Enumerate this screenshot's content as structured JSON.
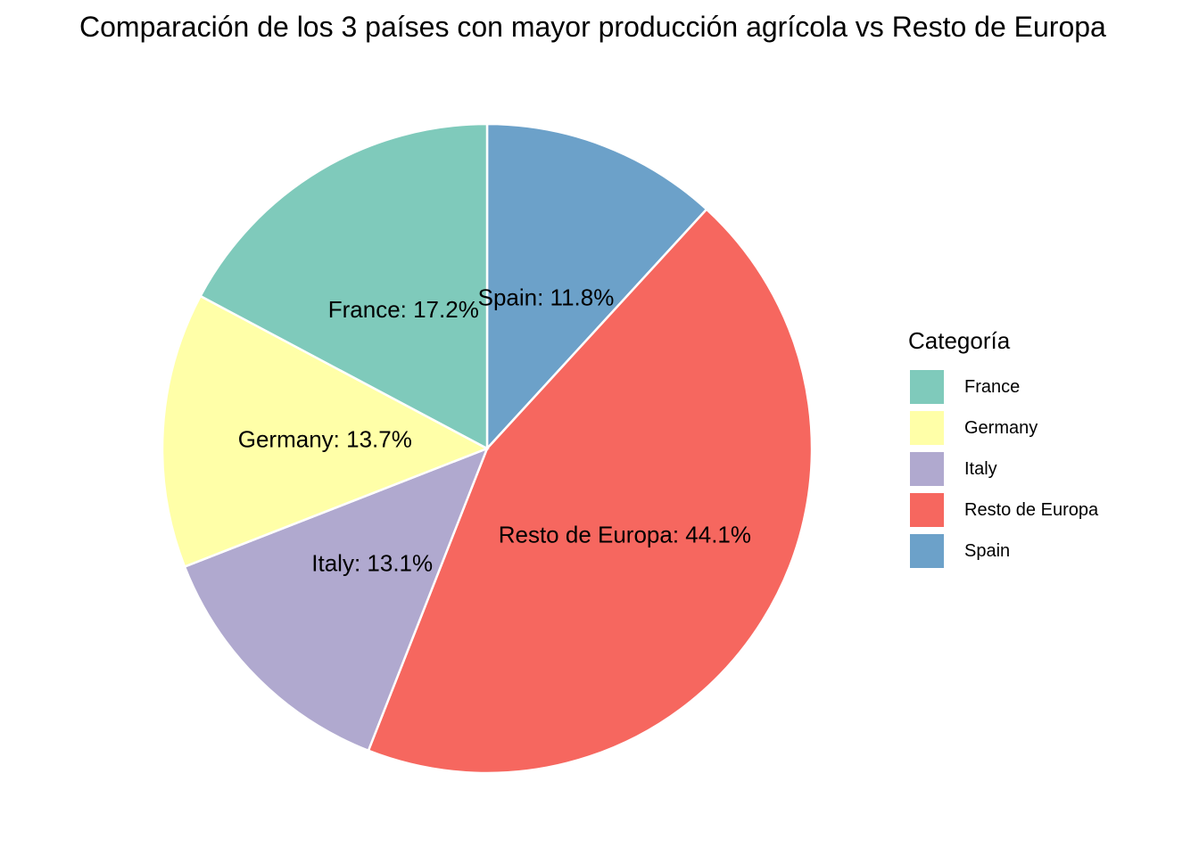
{
  "chart_data": {
    "type": "pie",
    "title": "Comparación de los 3 países con mayor producción agrícola vs Resto de Europa",
    "legend_title": "Categoría",
    "legend_position": "right",
    "slice_order": [
      "Spain",
      "Resto de Europa",
      "Italy",
      "Germany",
      "France"
    ],
    "categories": [
      "France",
      "Germany",
      "Italy",
      "Resto de Europa",
      "Spain"
    ],
    "values": [
      17.2,
      13.7,
      13.1,
      44.1,
      11.8
    ],
    "labels": [
      "France: 17.2%",
      "Germany: 13.7%",
      "Italy: 13.1%",
      "Resto de Europa: 44.1%",
      "Spain: 11.8%"
    ],
    "colors": [
      "#7fcabb",
      "#ffffa8",
      "#b0a9cf",
      "#f6675f",
      "#6ca1c9"
    ]
  }
}
